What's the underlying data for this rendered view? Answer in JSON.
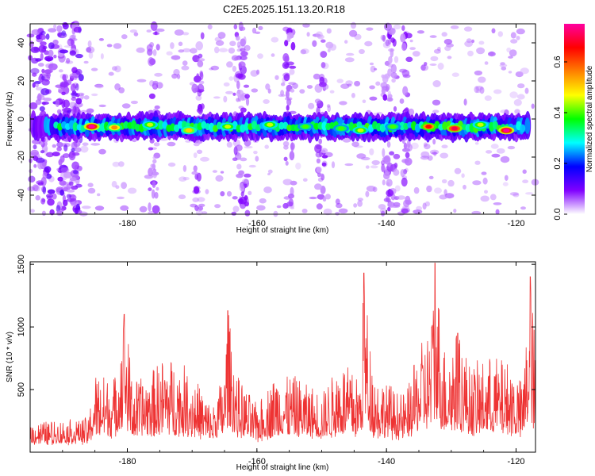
{
  "title": "C2E5.2025.151.13.20.R18",
  "chart_data": [
    {
      "type": "heatmap",
      "title": "C2E5.2025.151.13.20.R18",
      "xlabel": "Height of straight line (km)",
      "ylabel": "Frequency (Hz)",
      "xlim": [
        -195,
        -117
      ],
      "ylim": [
        -50,
        50
      ],
      "x_ticks": [
        -180,
        -160,
        -140,
        -120
      ],
      "y_ticks": [
        -40,
        -20,
        0,
        20,
        40
      ],
      "grid": false,
      "band_center_hz": -4,
      "band_halfwidth_hz": 6,
      "hot_spots": [
        {
          "x": -185.5,
          "y": -4,
          "amplitude": 0.75
        },
        {
          "x": -182,
          "y": -4.5,
          "amplitude": 0.55
        },
        {
          "x": -176.5,
          "y": -3,
          "amplitude": 0.45
        },
        {
          "x": -170.5,
          "y": -6,
          "amplitude": 0.5
        },
        {
          "x": -164.5,
          "y": -4,
          "amplitude": 0.45
        },
        {
          "x": -158,
          "y": -3,
          "amplitude": 0.45
        },
        {
          "x": -152.5,
          "y": -4,
          "amplitude": 0.4
        },
        {
          "x": -147,
          "y": -5,
          "amplitude": 0.4
        },
        {
          "x": -144,
          "y": -6,
          "amplitude": 0.45
        },
        {
          "x": -139,
          "y": -4,
          "amplitude": 0.4
        },
        {
          "x": -133.5,
          "y": -4,
          "amplitude": 0.65
        },
        {
          "x": -129.5,
          "y": -5,
          "amplitude": 0.7
        },
        {
          "x": -125.5,
          "y": -3,
          "amplitude": 0.45
        },
        {
          "x": -121.5,
          "y": -6,
          "amplitude": 0.75
        }
      ],
      "noise_columns_km": [
        -193,
        -190,
        -188,
        -176,
        -169,
        -163,
        -162,
        -155,
        -150,
        -140,
        -139,
        -137
      ],
      "colorbar": {
        "label": "Normalized spectral amplitude",
        "range": [
          0,
          0.75
        ],
        "ticks": [
          "0.0",
          "0.2",
          "0.4",
          "0.6"
        ],
        "tick_values": [
          0.0,
          0.2,
          0.4,
          0.6
        ],
        "colormap": [
          "#ffffff",
          "#8000ff",
          "#0000ff",
          "#00ffff",
          "#00ff00",
          "#ffff00",
          "#ff8000",
          "#ff0000",
          "#ff00a0"
        ]
      }
    },
    {
      "type": "line",
      "xlabel": "Height of straight line (km)",
      "ylabel": "SNR (10 * v/v)",
      "xlim": [
        -195,
        -117
      ],
      "ylim": [
        0,
        1520
      ],
      "x_ticks": [
        -180,
        -160,
        -140,
        -120
      ],
      "y_ticks": [
        500,
        1000,
        1500
      ],
      "grid": false,
      "line_color": "#ee3333",
      "envelope": [
        {
          "x": -195,
          "y": 200
        },
        {
          "x": -190,
          "y": 210
        },
        {
          "x": -186,
          "y": 230
        },
        {
          "x": -185,
          "y": 600
        },
        {
          "x": -182,
          "y": 560
        },
        {
          "x": -180.5,
          "y": 1100
        },
        {
          "x": -179,
          "y": 520
        },
        {
          "x": -176,
          "y": 620
        },
        {
          "x": -174,
          "y": 750
        },
        {
          "x": -170,
          "y": 600
        },
        {
          "x": -167,
          "y": 320
        },
        {
          "x": -165,
          "y": 620
        },
        {
          "x": -164.5,
          "y": 1130
        },
        {
          "x": -163,
          "y": 560
        },
        {
          "x": -160,
          "y": 330
        },
        {
          "x": -157,
          "y": 600
        },
        {
          "x": -154,
          "y": 560
        },
        {
          "x": -150,
          "y": 440
        },
        {
          "x": -147,
          "y": 700
        },
        {
          "x": -144,
          "y": 560
        },
        {
          "x": -143.5,
          "y": 1430
        },
        {
          "x": -142,
          "y": 600
        },
        {
          "x": -139,
          "y": 480
        },
        {
          "x": -137,
          "y": 420
        },
        {
          "x": -135,
          "y": 800
        },
        {
          "x": -133,
          "y": 1000
        },
        {
          "x": -132.5,
          "y": 1510
        },
        {
          "x": -131,
          "y": 800
        },
        {
          "x": -129,
          "y": 950
        },
        {
          "x": -127,
          "y": 650
        },
        {
          "x": -124,
          "y": 720
        },
        {
          "x": -121,
          "y": 700
        },
        {
          "x": -119,
          "y": 500
        },
        {
          "x": -117.8,
          "y": 1400
        },
        {
          "x": -117,
          "y": 800
        }
      ]
    }
  ]
}
